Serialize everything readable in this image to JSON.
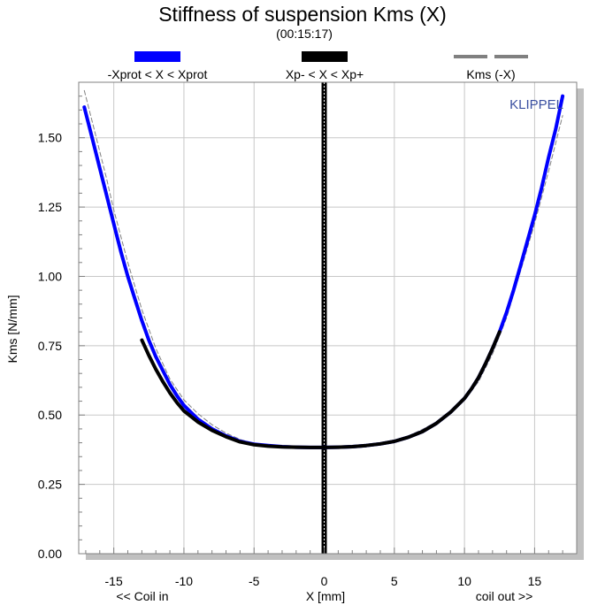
{
  "chart_data": {
    "type": "line",
    "title": "Stiffness of suspension Kms (X)",
    "subtitle": "(00:15:17)",
    "xlabel": "X [mm]",
    "ylabel": "Kms [N/mm]",
    "x_left_note": "<< Coil in",
    "x_right_note": "coil out >>",
    "brand": "KLIPPEL",
    "xlim": [
      -17.5,
      18
    ],
    "ylim": [
      0,
      1.7
    ],
    "x_ticks": [
      -15,
      -10,
      -5,
      0,
      5,
      10,
      15
    ],
    "y_ticks": [
      0.0,
      0.25,
      0.5,
      0.75,
      1.0,
      1.25,
      1.5
    ],
    "x_tick_labels": [
      "-15",
      "-10",
      "-5",
      "0",
      "5",
      "10",
      "15"
    ],
    "y_tick_labels": [
      "0.00",
      "0.25",
      "0.50",
      "0.75",
      "1.00",
      "1.25",
      "1.50"
    ],
    "grid": true,
    "legend_position": "top",
    "legend": [
      {
        "name": "-Xprot < X < Xprot",
        "color": "#0000ff"
      },
      {
        "name": "Xp- < X < Xp+",
        "color": "#000000"
      },
      {
        "name": "Kms (-X)",
        "color": "#808080"
      }
    ],
    "series": [
      {
        "name": "-Xprot < X < Xprot",
        "color": "#0000ff",
        "x": [
          -17.1,
          -16.5,
          -16.0,
          -15.5,
          -15.0,
          -14.5,
          -14.0,
          -13.5,
          -13.0,
          -12.5,
          -12.0,
          -11.5,
          -11.0,
          -10.5,
          -10.0,
          -9.0,
          -8.0,
          -7.0,
          -6.0,
          -5.0,
          -4.0,
          -3.0,
          -2.0,
          -1.0,
          0.0,
          1.0,
          2.0,
          3.0,
          4.0,
          5.0,
          6.0,
          7.0,
          8.0,
          9.0,
          10.0,
          10.5,
          11.0,
          11.5,
          12.0,
          12.5,
          13.0,
          13.5,
          14.0,
          14.5,
          15.0,
          15.5,
          16.0,
          16.5,
          17.0
        ],
        "values": [
          1.61,
          1.49,
          1.39,
          1.29,
          1.19,
          1.09,
          1.0,
          0.92,
          0.84,
          0.77,
          0.71,
          0.66,
          0.61,
          0.57,
          0.535,
          0.485,
          0.45,
          0.425,
          0.405,
          0.395,
          0.39,
          0.386,
          0.384,
          0.383,
          0.383,
          0.384,
          0.386,
          0.39,
          0.396,
          0.405,
          0.42,
          0.44,
          0.47,
          0.51,
          0.56,
          0.595,
          0.635,
          0.685,
          0.74,
          0.8,
          0.87,
          0.95,
          1.04,
          1.13,
          1.22,
          1.32,
          1.43,
          1.53,
          1.65
        ]
      },
      {
        "name": "Xp- < X < Xp+",
        "color": "#000000",
        "x": [
          -13.0,
          -12.5,
          -12.0,
          -11.5,
          -11.0,
          -10.5,
          -10.0,
          -9.0,
          -8.0,
          -7.0,
          -6.0,
          -5.0,
          -4.0,
          -3.0,
          -2.0,
          -1.0,
          0.0,
          1.0,
          2.0,
          3.0,
          4.0,
          5.0,
          6.0,
          7.0,
          8.0,
          9.0,
          10.0,
          10.5,
          11.0,
          11.5,
          12.0,
          12.5
        ],
        "values": [
          0.77,
          0.715,
          0.665,
          0.62,
          0.58,
          0.545,
          0.515,
          0.475,
          0.445,
          0.422,
          0.403,
          0.393,
          0.388,
          0.385,
          0.384,
          0.383,
          0.383,
          0.384,
          0.386,
          0.39,
          0.396,
          0.405,
          0.42,
          0.44,
          0.47,
          0.51,
          0.56,
          0.595,
          0.635,
          0.685,
          0.74,
          0.8
        ]
      },
      {
        "name": "Kms (-X)",
        "color": "#808080",
        "x": [
          -17.1,
          -16.5,
          -16.0,
          -15.5,
          -15.0,
          -14.0,
          -13.0,
          -12.0,
          -11.0,
          -10.0,
          -9.0,
          -8.0,
          -7.0,
          -6.0,
          -5.0,
          -4.0,
          -3.0,
          -2.0,
          -1.0,
          0.0,
          1.0,
          2.0,
          3.0,
          4.0,
          5.0,
          6.0,
          7.0,
          8.0,
          9.0,
          10.0,
          11.0,
          12.0,
          13.0,
          14.0,
          15.0,
          16.0,
          17.0
        ],
        "values": [
          1.67,
          1.55,
          1.45,
          1.35,
          1.24,
          1.05,
          0.88,
          0.74,
          0.63,
          0.555,
          0.505,
          0.465,
          0.435,
          0.412,
          0.397,
          0.39,
          0.386,
          0.384,
          0.383,
          0.383,
          0.384,
          0.386,
          0.39,
          0.397,
          0.408,
          0.425,
          0.448,
          0.475,
          0.51,
          0.555,
          0.62,
          0.72,
          0.85,
          1.02,
          1.19,
          1.38,
          1.58
        ]
      }
    ]
  }
}
